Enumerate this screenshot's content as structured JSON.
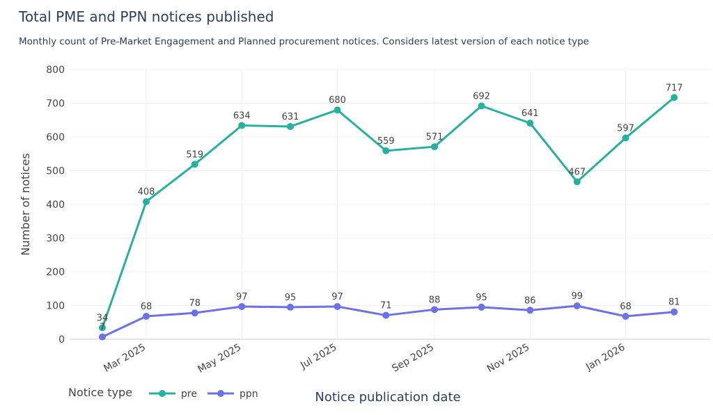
{
  "chart_data": {
    "type": "line",
    "title": "Total PME and PPN notices published",
    "subtitle": "Monthly count of Pre-Market Engagement and Planned procurement notices. Considers latest version of each notice type",
    "xlabel": "Notice publication date",
    "ylabel": "Number of notices",
    "ylim": [
      0,
      800
    ],
    "yticks": [
      0,
      100,
      200,
      300,
      400,
      500,
      600,
      700,
      800
    ],
    "x": [
      "2025-02-01",
      "2025-03-01",
      "2025-04-01",
      "2025-05-01",
      "2025-06-01",
      "2025-07-01",
      "2025-08-01",
      "2025-09-01",
      "2025-10-01",
      "2025-11-01",
      "2025-12-01",
      "2026-01-01",
      "2026-02-01"
    ],
    "xticks": [
      {
        "date": "2025-03-01",
        "label": "Mar 2025"
      },
      {
        "date": "2025-05-01",
        "label": "May 2025"
      },
      {
        "date": "2025-07-01",
        "label": "Jul 2025"
      },
      {
        "date": "2025-09-01",
        "label": "Sep 2025"
      },
      {
        "date": "2025-11-01",
        "label": "Nov 2025"
      },
      {
        "date": "2026-01-01",
        "label": "Jan 2026"
      }
    ],
    "legend_title": "Notice type",
    "legend_position": "bottom-left",
    "grid": true,
    "series": [
      {
        "name": "pre",
        "color": "#26b0a0",
        "values": [
          34,
          408,
          519,
          634,
          631,
          680,
          559,
          571,
          692,
          641,
          467,
          597,
          717
        ]
      },
      {
        "name": "ppn",
        "color": "#6c71e6",
        "values": [
          7,
          68,
          78,
          97,
          95,
          97,
          71,
          88,
          95,
          86,
          99,
          68,
          81
        ]
      }
    ]
  }
}
